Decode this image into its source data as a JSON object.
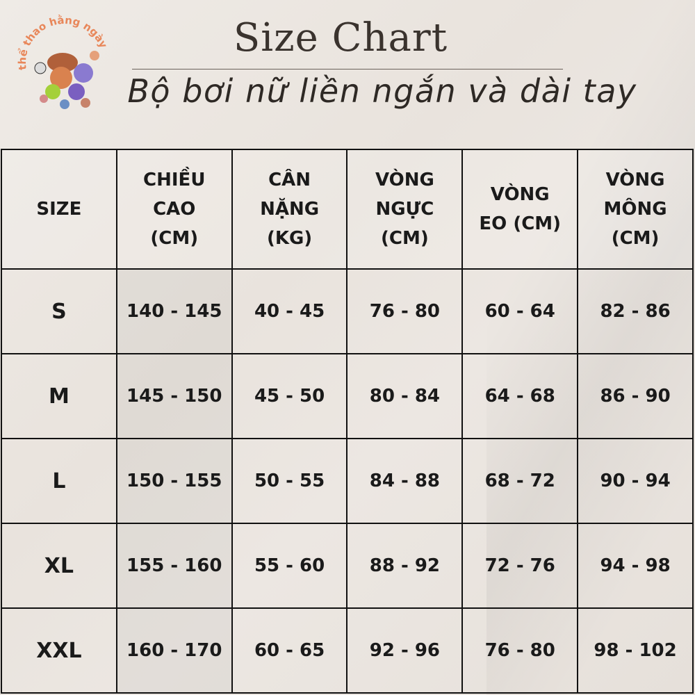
{
  "logo": {
    "text": "thể thao hằng ngày",
    "colors": [
      "#e8875a",
      "#a0522d",
      "#6a5acd",
      "#9acd32"
    ]
  },
  "title": "Size Chart",
  "subtitle": "Bộ bơi nữ liền ngắn và dài tay",
  "table": {
    "headers": [
      "SIZE",
      "CHIỀU CAO (CM)",
      "CÂN NẶNG (KG)",
      "VÒNG NGỰC (CM)",
      "VÒNG EO (CM)",
      "VÒNG MÔNG (CM)"
    ],
    "rows": [
      [
        "S",
        "140 - 145",
        "40 - 45",
        "76 - 80",
        "60 - 64",
        "82 - 86"
      ],
      [
        "M",
        "145 - 150",
        "45 - 50",
        "80 - 84",
        "64 - 68",
        "86 - 90"
      ],
      [
        "L",
        "150 - 155",
        "50 - 55",
        "84 - 88",
        "68 - 72",
        "90 - 94"
      ],
      [
        "XL",
        "155 - 160",
        "55 - 60",
        "88 - 92",
        "72 - 76",
        "94 - 98"
      ],
      [
        "XXL",
        "160 - 170",
        "60 - 65",
        "92 - 96",
        "76 - 80",
        "98 - 102"
      ]
    ]
  },
  "chart_data": {
    "type": "table",
    "columns": [
      "SIZE",
      "CHIỀU CAO (CM)",
      "CÂN NẶNG (KG)",
      "VÒNG NGỰC (CM)",
      "VÒNG EO (CM)",
      "VÒNG MÔNG (CM)"
    ],
    "rows": [
      [
        "S",
        "140 - 145",
        "40 - 45",
        "76 - 80",
        "60 - 64",
        "82 - 86"
      ],
      [
        "M",
        "145 - 150",
        "45 - 50",
        "80 - 84",
        "64 - 68",
        "86 - 90"
      ],
      [
        "L",
        "150 - 155",
        "50 - 55",
        "84 - 88",
        "68 - 72",
        "90 - 94"
      ],
      [
        "XL",
        "155 - 160",
        "55 - 60",
        "88 - 92",
        "72 - 76",
        "94 - 98"
      ],
      [
        "XXL",
        "160 - 170",
        "60 - 65",
        "92 - 96",
        "76 - 80",
        "98 - 102"
      ]
    ]
  }
}
